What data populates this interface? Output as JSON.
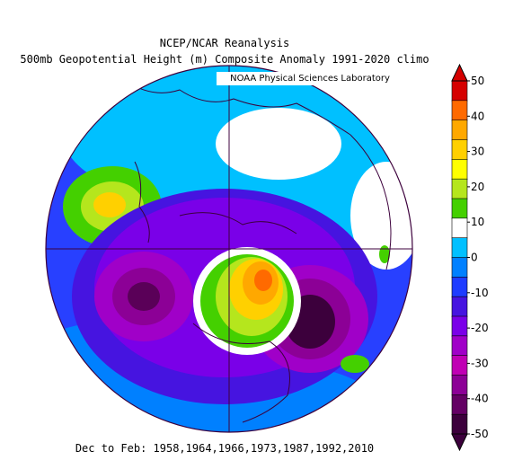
{
  "title_line1": "NCEP/NCAR Reanalysis",
  "title_line2": "500mb Geopotential Height (m) Composite Anomaly 1991-2020 climo",
  "credit": "NOAA Physical Sciences Laboratory",
  "footer": "Dec to Feb: 1958,1964,1966,1973,1987,1992,2010",
  "colorbar": {
    "labels": [
      "50",
      "40",
      "30",
      "20",
      "10",
      "0",
      "-10",
      "-20",
      "-30",
      "-40",
      "-50"
    ],
    "colors": [
      "#d50000",
      "#ff6a00",
      "#ffa800",
      "#ffd000",
      "#ffff00",
      "#b5e61d",
      "#44d000",
      "#ffffff",
      "#00c0ff",
      "#0080ff",
      "#1e3cff",
      "#4614e0",
      "#7a00e8",
      "#a000c8",
      "#c000b4",
      "#8c0096",
      "#640064",
      "#3c003c"
    ]
  },
  "anomaly_regions": [
    {
      "name": "negative-background",
      "color": "#4a3ae8"
    },
    {
      "name": "negative-purple",
      "color": "#7a00e0"
    },
    {
      "name": "atlantic-low-core",
      "color": "#5a0058"
    },
    {
      "name": "pacific-low-core",
      "color": "#640064"
    },
    {
      "name": "greenland-high",
      "color": "#ff6a00"
    },
    {
      "name": "pacific-high-green",
      "color": "#7cdc00"
    }
  ]
}
